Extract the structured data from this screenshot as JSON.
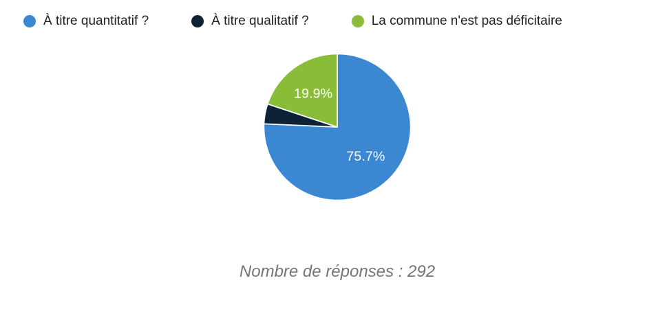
{
  "legend": {
    "items": [
      {
        "label": "À titre quantitatif ?",
        "color": "#3c87d2"
      },
      {
        "label": "À titre qualitatif ?",
        "color": "#0d2137"
      },
      {
        "label": "La commune n'est pas déficitaire",
        "color": "#8abd37"
      }
    ]
  },
  "caption": "Nombre de réponses : 292",
  "chart_data": {
    "type": "pie",
    "categories": [
      "À titre quantitatif ?",
      "À titre qualitatif ?",
      "La commune n'est pas déficitaire"
    ],
    "values": [
      75.7,
      4.4,
      19.9
    ],
    "unit": "%",
    "colors": [
      "#3c87d2",
      "#0d2137",
      "#8abd37"
    ],
    "slice_labels": [
      "75.7%",
      "",
      "19.9%"
    ],
    "slice_label_color": "#ffffff",
    "start_angle_deg": 0,
    "direction": "clockwise",
    "legend_position": "top",
    "title": "",
    "footnote": "Nombre de réponses : 292",
    "total_responses": 292
  }
}
